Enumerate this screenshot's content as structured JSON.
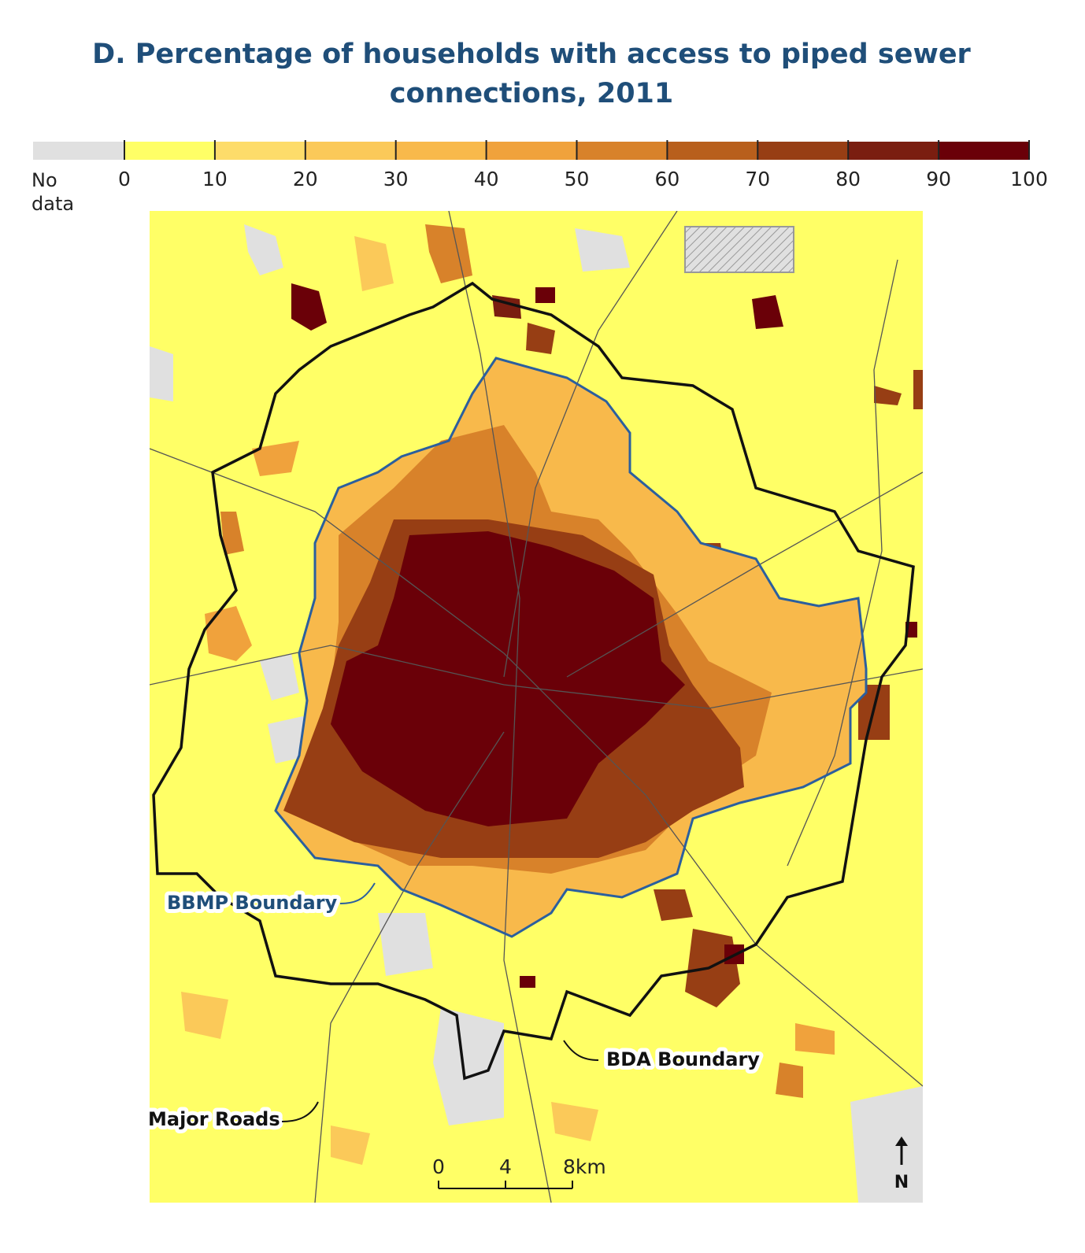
{
  "title": "D. Percentage of households with access to piped sewer connections, 2011",
  "legend": {
    "no_data_label": "No data",
    "no_data_color": "#e0e0e0",
    "ticks": [
      0,
      10,
      20,
      30,
      40,
      50,
      60,
      70,
      80,
      90,
      100
    ],
    "colors": [
      "#ffff66",
      "#fddc6a",
      "#fbc959",
      "#f8b94b",
      "#f0a23c",
      "#d8822a",
      "#b85f1c",
      "#973e14",
      "#7a1e10",
      "#6a0008"
    ]
  },
  "annotations": {
    "bbmp": "BBMP Boundary",
    "bda": "BDA Boundary",
    "roads": "Major Roads"
  },
  "scale_bar": {
    "ticks": [
      0,
      4,
      {
        "value": 8,
        "label": "8km"
      }
    ]
  },
  "north": "N"
}
